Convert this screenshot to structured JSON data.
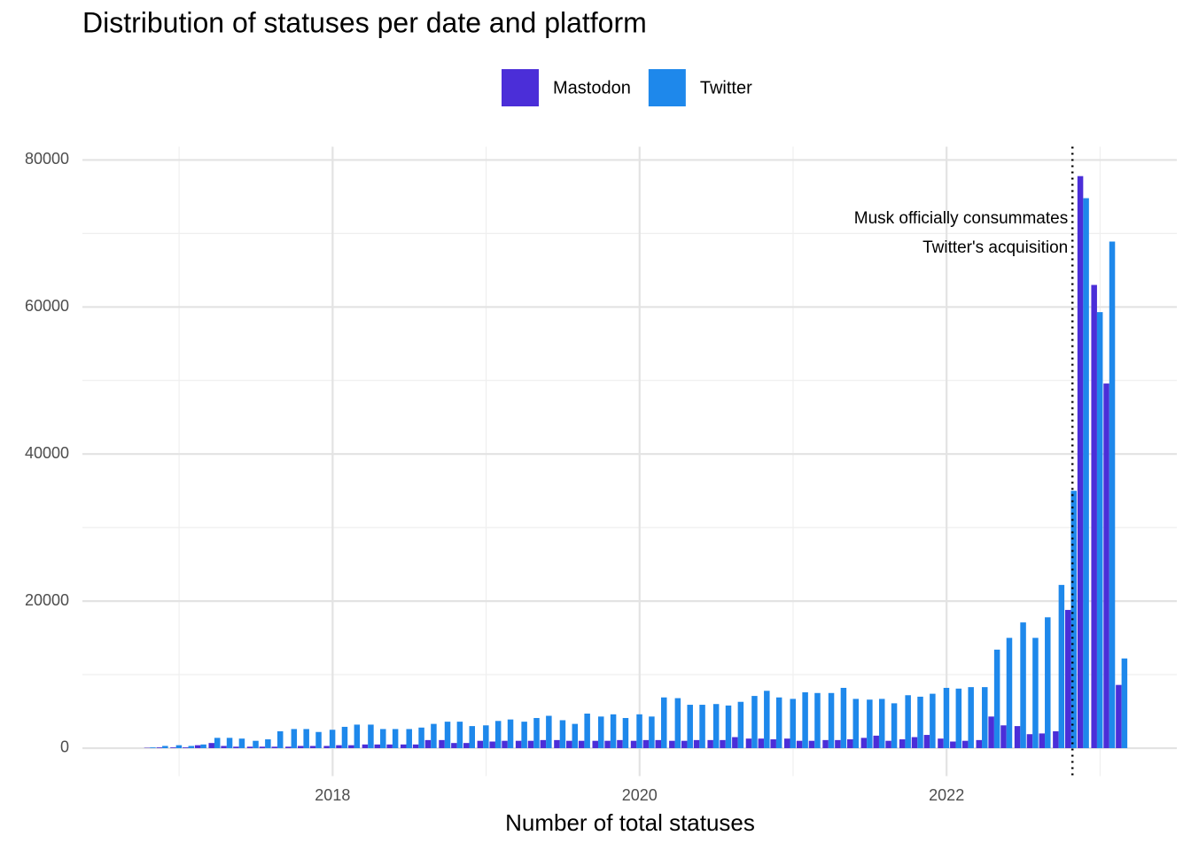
{
  "chart_data": {
    "type": "bar",
    "title": "Distribution of statuses per date and platform",
    "xlabel": "Number of total statuses",
    "legend": "top",
    "grid": true,
    "xlim": [
      2016.37,
      2023.5
    ],
    "xticks": [
      2018,
      2020,
      2022
    ],
    "xminor": [
      2017,
      2019,
      2021,
      2023
    ],
    "ylim": [
      -3800,
      81800
    ],
    "yticks": [
      0,
      20000,
      40000,
      60000,
      80000
    ],
    "yminor": [
      10000,
      30000,
      50000,
      70000
    ],
    "x": [
      2016.81,
      2016.89,
      2016.98,
      2017.06,
      2017.14,
      2017.23,
      2017.31,
      2017.39,
      2017.48,
      2017.56,
      2017.64,
      2017.73,
      2017.81,
      2017.89,
      2017.98,
      2018.06,
      2018.14,
      2018.23,
      2018.31,
      2018.39,
      2018.48,
      2018.56,
      2018.64,
      2018.73,
      2018.81,
      2018.89,
      2018.98,
      2019.06,
      2019.14,
      2019.23,
      2019.31,
      2019.39,
      2019.48,
      2019.56,
      2019.64,
      2019.73,
      2019.81,
      2019.89,
      2019.98,
      2020.06,
      2020.14,
      2020.23,
      2020.31,
      2020.39,
      2020.48,
      2020.56,
      2020.64,
      2020.73,
      2020.81,
      2020.89,
      2020.98,
      2021.06,
      2021.14,
      2021.23,
      2021.31,
      2021.39,
      2021.48,
      2021.56,
      2021.64,
      2021.73,
      2021.81,
      2021.89,
      2021.98,
      2022.06,
      2022.14,
      2022.23,
      2022.31,
      2022.39,
      2022.48,
      2022.56,
      2022.64,
      2022.73,
      2022.81,
      2022.89,
      2022.98,
      2023.06,
      2023.14
    ],
    "series": [
      {
        "name": "Mastodon",
        "color": "#4b2ed8",
        "values": [
          50,
          100,
          100,
          100,
          400,
          700,
          300,
          200,
          200,
          200,
          200,
          200,
          300,
          300,
          300,
          400,
          400,
          500,
          500,
          500,
          500,
          500,
          1100,
          1100,
          700,
          700,
          1000,
          900,
          1000,
          1000,
          1000,
          1100,
          1100,
          1000,
          1000,
          1000,
          1000,
          1100,
          1000,
          1100,
          1100,
          1000,
          1000,
          1100,
          1100,
          1100,
          1500,
          1300,
          1300,
          1200,
          1300,
          1000,
          1000,
          1100,
          1100,
          1200,
          1400,
          1700,
          1000,
          1200,
          1500,
          1800,
          1300,
          900,
          1000,
          1100,
          4300,
          3100,
          3000,
          1900,
          2000,
          2300,
          18800,
          77800,
          63000,
          49600,
          8600
        ]
      },
      {
        "name": "Twitter",
        "color": "#1e88eb",
        "values": [
          100,
          300,
          400,
          300,
          500,
          1400,
          1400,
          1300,
          1000,
          1200,
          2300,
          2600,
          2600,
          2200,
          2500,
          2900,
          3200,
          3200,
          2600,
          2600,
          2600,
          2800,
          3300,
          3600,
          3600,
          3000,
          3100,
          3700,
          3900,
          3600,
          4100,
          4400,
          3800,
          3300,
          4700,
          4300,
          4600,
          4100,
          4600,
          4300,
          6900,
          6800,
          5900,
          5900,
          6000,
          5800,
          6300,
          7100,
          7800,
          6900,
          6700,
          7600,
          7500,
          7500,
          8200,
          6700,
          6600,
          6700,
          6100,
          7200,
          7000,
          7400,
          8200,
          8100,
          8300,
          8300,
          13400,
          15000,
          17100,
          15000,
          17800,
          22200,
          35000,
          74800,
          59300,
          68900,
          12200
        ]
      }
    ],
    "annotation": {
      "x": 2022.82,
      "lines": [
        "Musk officially consummates",
        "Twitter's acquisition"
      ]
    }
  }
}
